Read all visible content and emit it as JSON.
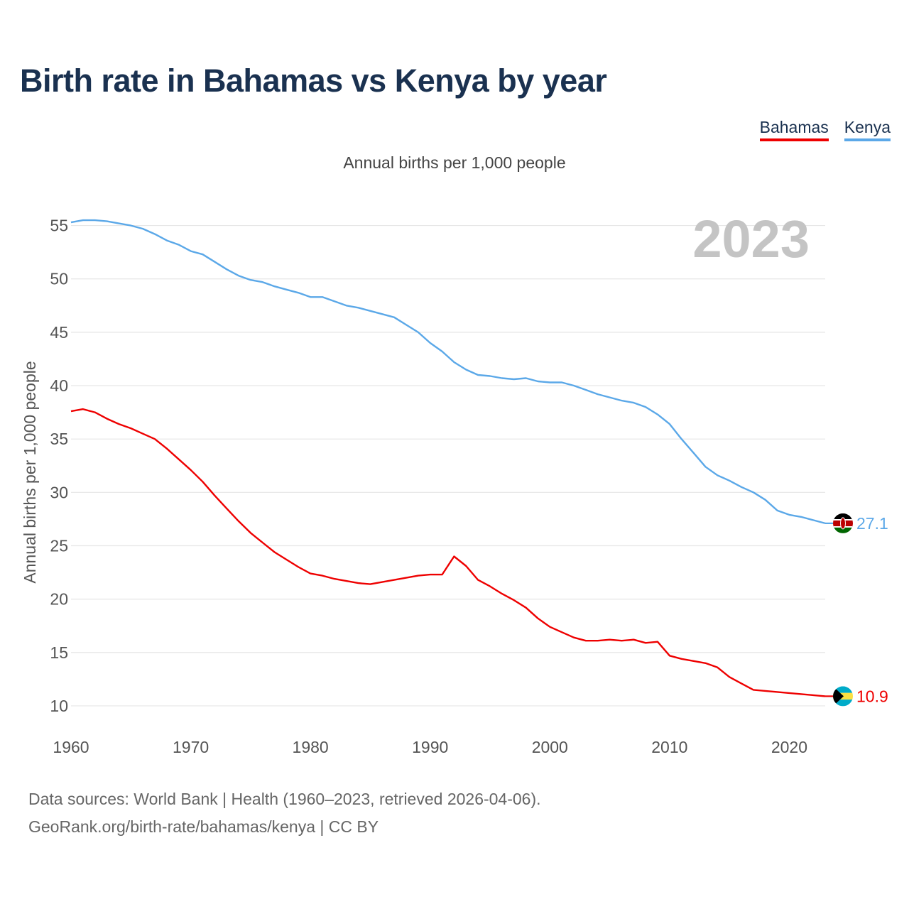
{
  "title": "Birth rate in Bahamas vs Kenya by year",
  "legend": {
    "bahamas": "Bahamas",
    "kenya": "Kenya"
  },
  "source": {
    "line1": "Data sources: World Bank | Health (1960–2023, retrieved 2026-04-06).",
    "line2": "GeoRank.org/birth-rate/bahamas/kenya | CC BY"
  },
  "chart_data": {
    "type": "line",
    "title": "Birth rate in Bahamas vs Kenya by year",
    "subtitle": "Annual births per 1,000 people",
    "ylabel": "Annual births per 1,000 people",
    "xlabel": "",
    "year_label": "2023",
    "xlim": [
      1960,
      2023
    ],
    "ylim": [
      7.6,
      57.5
    ],
    "x_ticks": [
      1960,
      1970,
      1980,
      1990,
      2000,
      2010,
      2020
    ],
    "y_ticks": [
      10,
      15,
      20,
      25,
      30,
      35,
      40,
      45,
      50,
      55
    ],
    "grid": true,
    "legend_position": "top-right",
    "series": [
      {
        "name": "Bahamas",
        "color": "#ee0000",
        "end_label": "10.9",
        "x": [
          1960,
          1961,
          1962,
          1963,
          1964,
          1965,
          1966,
          1967,
          1968,
          1969,
          1970,
          1971,
          1972,
          1973,
          1974,
          1975,
          1976,
          1977,
          1978,
          1979,
          1980,
          1981,
          1982,
          1983,
          1984,
          1985,
          1986,
          1987,
          1988,
          1989,
          1990,
          1991,
          1992,
          1993,
          1994,
          1995,
          1996,
          1997,
          1998,
          1999,
          2000,
          2001,
          2002,
          2003,
          2004,
          2005,
          2006,
          2007,
          2008,
          2009,
          2010,
          2011,
          2012,
          2013,
          2014,
          2015,
          2016,
          2017,
          2018,
          2019,
          2020,
          2021,
          2022,
          2023
        ],
        "values": [
          37.6,
          37.8,
          37.5,
          36.9,
          36.4,
          36.0,
          35.5,
          35.0,
          34.1,
          33.1,
          32.1,
          31.0,
          29.7,
          28.5,
          27.3,
          26.2,
          25.3,
          24.4,
          23.7,
          23.0,
          22.4,
          22.2,
          21.9,
          21.7,
          21.5,
          21.4,
          21.6,
          21.8,
          22.0,
          22.2,
          22.3,
          22.3,
          24.0,
          23.1,
          21.8,
          21.2,
          20.5,
          19.9,
          19.2,
          18.2,
          17.4,
          16.9,
          16.4,
          16.1,
          16.1,
          16.2,
          16.1,
          16.2,
          15.9,
          16.0,
          14.7,
          14.4,
          14.2,
          14.0,
          13.6,
          12.7,
          12.1,
          11.5,
          11.4,
          11.3,
          11.2,
          11.1,
          11.0,
          10.9
        ]
      },
      {
        "name": "Kenya",
        "color": "#5ba8e8",
        "end_label": "27.1",
        "x": [
          1960,
          1961,
          1962,
          1963,
          1964,
          1965,
          1966,
          1967,
          1968,
          1969,
          1970,
          1971,
          1972,
          1973,
          1974,
          1975,
          1976,
          1977,
          1978,
          1979,
          1980,
          1981,
          1982,
          1983,
          1984,
          1985,
          1986,
          1987,
          1988,
          1989,
          1990,
          1991,
          1992,
          1993,
          1994,
          1995,
          1996,
          1997,
          1998,
          1999,
          2000,
          2001,
          2002,
          2003,
          2004,
          2005,
          2006,
          2007,
          2008,
          2009,
          2010,
          2011,
          2012,
          2013,
          2014,
          2015,
          2016,
          2017,
          2018,
          2019,
          2020,
          2021,
          2022,
          2023
        ],
        "values": [
          55.3,
          55.5,
          55.5,
          55.4,
          55.2,
          55.0,
          54.7,
          54.2,
          53.6,
          53.2,
          52.6,
          52.3,
          51.6,
          50.9,
          50.3,
          49.9,
          49.7,
          49.3,
          49.0,
          48.7,
          48.3,
          48.3,
          47.9,
          47.5,
          47.3,
          47.0,
          46.7,
          46.4,
          45.7,
          45.0,
          44.0,
          43.2,
          42.2,
          41.5,
          41.0,
          40.9,
          40.7,
          40.6,
          40.7,
          40.4,
          40.3,
          40.3,
          40.0,
          39.6,
          39.2,
          38.9,
          38.6,
          38.4,
          38.0,
          37.3,
          36.4,
          35.0,
          33.7,
          32.4,
          31.6,
          31.1,
          30.5,
          30.0,
          29.3,
          28.3,
          27.9,
          27.7,
          27.4,
          27.1
        ]
      }
    ]
  },
  "colors": {
    "title": "#1a3150",
    "bahamas": "#ee0000",
    "kenya": "#5ba8e8",
    "grid": "#e6e6e6",
    "year": "#c4c4c4",
    "axis_text": "#555555"
  },
  "icons": {
    "bahamas_marker": "bahamas-flag-icon",
    "kenya_marker": "kenya-flag-icon"
  }
}
